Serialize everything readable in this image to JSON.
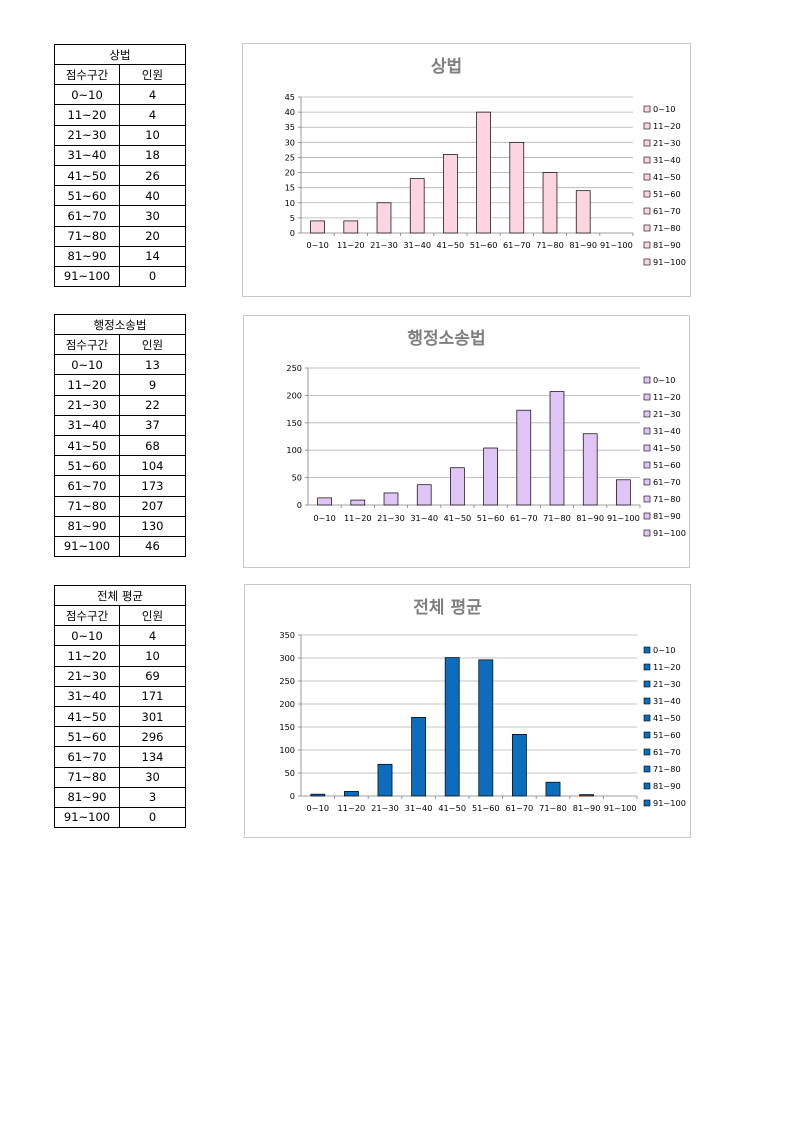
{
  "table_header": {
    "range": "점수구간",
    "count": "인원"
  },
  "sections": [
    {
      "title": "상법",
      "rows": [
        [
          "0~10",
          "4"
        ],
        [
          "11~20",
          "4"
        ],
        [
          "21~30",
          "10"
        ],
        [
          "31~40",
          "18"
        ],
        [
          "41~50",
          "26"
        ],
        [
          "51~60",
          "40"
        ],
        [
          "61~70",
          "30"
        ],
        [
          "71~80",
          "20"
        ],
        [
          "81~90",
          "14"
        ],
        [
          "91~100",
          "0"
        ]
      ]
    },
    {
      "title": "행정소송법",
      "rows": [
        [
          "0~10",
          "13"
        ],
        [
          "11~20",
          "9"
        ],
        [
          "21~30",
          "22"
        ],
        [
          "31~40",
          "37"
        ],
        [
          "41~50",
          "68"
        ],
        [
          "51~60",
          "104"
        ],
        [
          "61~70",
          "173"
        ],
        [
          "71~80",
          "207"
        ],
        [
          "81~90",
          "130"
        ],
        [
          "91~100",
          "46"
        ]
      ]
    },
    {
      "title": "전체 평균",
      "rows": [
        [
          "0~10",
          "4"
        ],
        [
          "11~20",
          "10"
        ],
        [
          "21~30",
          "69"
        ],
        [
          "31~40",
          "171"
        ],
        [
          "41~50",
          "301"
        ],
        [
          "51~60",
          "296"
        ],
        [
          "61~70",
          "134"
        ],
        [
          "71~80",
          "30"
        ],
        [
          "81~90",
          "3"
        ],
        [
          "91~100",
          "0"
        ]
      ]
    }
  ],
  "chart_data": [
    {
      "type": "bar",
      "title": "상법",
      "categories": [
        "0~10",
        "11~20",
        "21~30",
        "31~40",
        "41~50",
        "51~60",
        "61~70",
        "71~80",
        "81~90",
        "91~100"
      ],
      "values": [
        4,
        4,
        10,
        18,
        26,
        40,
        30,
        20,
        14,
        0
      ],
      "ylim": [
        0,
        45
      ],
      "yticks": [
        0,
        5,
        10,
        15,
        20,
        25,
        30,
        35,
        40,
        45
      ],
      "legend": [
        "0~10",
        "11~20",
        "21~30",
        "31~40",
        "41~50",
        "51~60",
        "61~70",
        "71~80",
        "81~90",
        "91~100"
      ],
      "legend_position": "right",
      "grid": true,
      "bar_color": "#fcd5e1"
    },
    {
      "type": "bar",
      "title": "행정소송법",
      "categories": [
        "0~10",
        "11~20",
        "21~30",
        "31~40",
        "41~50",
        "51~60",
        "61~70",
        "71~80",
        "81~90",
        "91~100"
      ],
      "values": [
        13,
        9,
        22,
        37,
        68,
        104,
        173,
        207,
        130,
        46
      ],
      "ylim": [
        0,
        250
      ],
      "yticks": [
        0,
        50,
        100,
        150,
        200,
        250
      ],
      "legend": [
        "0~10",
        "11~20",
        "21~30",
        "31~40",
        "41~50",
        "51~60",
        "61~70",
        "71~80",
        "81~90",
        "91~100"
      ],
      "legend_position": "right",
      "grid": true,
      "bar_color": "#e0c4f6"
    },
    {
      "type": "bar",
      "title": "전체 평균",
      "categories": [
        "0~10",
        "11~20",
        "21~30",
        "31~40",
        "41~50",
        "51~60",
        "61~70",
        "71~80",
        "81~90",
        "91~100"
      ],
      "values": [
        4,
        10,
        69,
        171,
        301,
        296,
        134,
        30,
        3,
        0
      ],
      "ylim": [
        0,
        350
      ],
      "yticks": [
        0,
        50,
        100,
        150,
        200,
        250,
        300,
        350
      ],
      "legend": [
        "0~10",
        "11~20",
        "21~30",
        "31~40",
        "41~50",
        "51~60",
        "61~70",
        "71~80",
        "81~90",
        "91~100"
      ],
      "legend_position": "right",
      "grid": true,
      "bar_color": "#0c6dbd"
    }
  ]
}
